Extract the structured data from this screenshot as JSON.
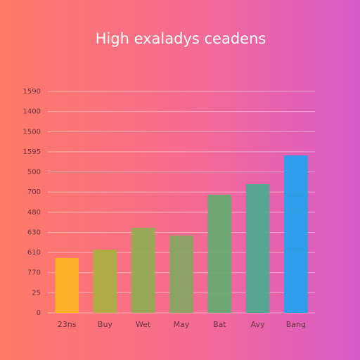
{
  "chart_data": {
    "type": "bar",
    "title": "High exaladys ceadens",
    "categories": [
      "23ns",
      "Buy",
      "Wet",
      "May",
      "Bat",
      "Avy",
      "Bang"
    ],
    "values": [
      273,
      314,
      423,
      384,
      587,
      639,
      782
    ],
    "colors": [
      "#fbb521",
      "#a9b042",
      "#90ad52",
      "#82a862",
      "#62ad72",
      "#4ca88f",
      "#1fa3ee"
    ],
    "ylim": [
      0,
      1100
    ],
    "yticks": [
      0,
      {
        "value": 100,
        "label": "25"
      },
      {
        "value": 200,
        "label": "770"
      },
      {
        "value": 300,
        "label": "610"
      },
      {
        "value": 400,
        "label": "630"
      },
      {
        "value": 500,
        "label": "480"
      },
      {
        "value": 600,
        "label": "700"
      },
      {
        "value": 700,
        "label": "500"
      },
      {
        "value": 800,
        "label": "1595"
      },
      {
        "value": 900,
        "label": "1500"
      },
      {
        "value": 1000,
        "label": "1400"
      },
      {
        "value": 1100,
        "label": "1590"
      }
    ],
    "grid": true
  }
}
